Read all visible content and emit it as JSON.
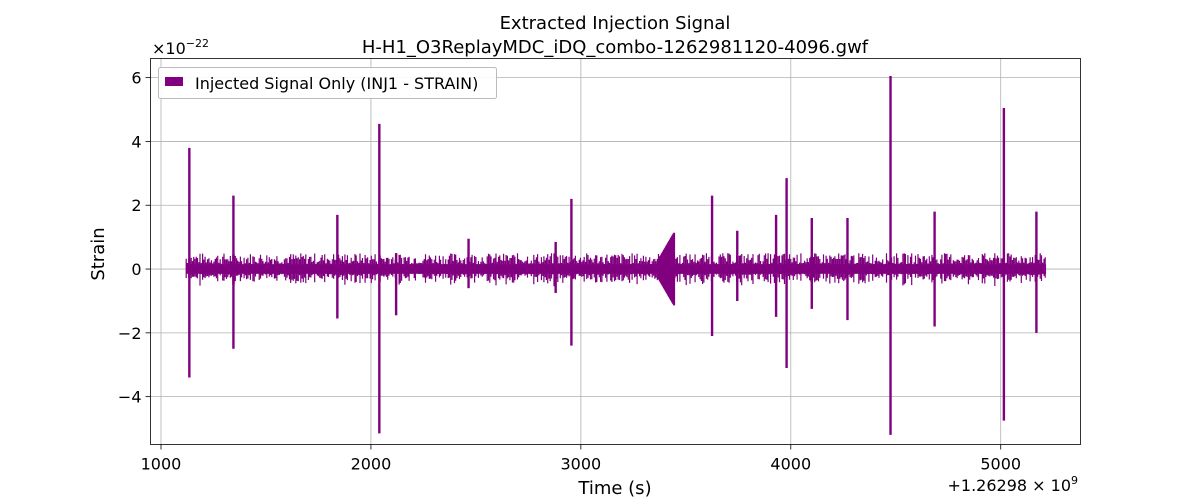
{
  "chart_data": {
    "type": "line",
    "title": "Extracted Injection Signal",
    "subtitle": "H-H1_O3ReplayMDC_iDQ_combo-1262981120-4096.gwf",
    "xlabel": "Time (s)",
    "ylabel": "Strain",
    "x_offset_label": "+1.26298 × 10",
    "x_offset_exp": "9",
    "y_scale_label": "×10",
    "y_scale_exp": "−22",
    "xlim": [
      950,
      5380
    ],
    "ylim": [
      -5.5,
      6.6
    ],
    "x_ticks": [
      1000,
      2000,
      3000,
      4000,
      5000
    ],
    "x_tick_labels": [
      "1000",
      "2000",
      "3000",
      "4000",
      "5000"
    ],
    "y_ticks": [
      -4,
      -2,
      0,
      2,
      4,
      6
    ],
    "y_tick_labels": [
      "−4",
      "−2",
      "0",
      "2",
      "4",
      "6"
    ],
    "grid": true,
    "legend_position": "top-left",
    "series": [
      {
        "name": "Injected Signal Only (INJ1 - STRAIN)",
        "color": "#800080",
        "x_range": [
          1120,
          5216
        ],
        "baseline_band": 0.15,
        "spikes": [
          {
            "x": 1135,
            "max": 3.8,
            "min": -3.4
          },
          {
            "x": 1345,
            "max": 2.3,
            "min": -2.5
          },
          {
            "x": 1840,
            "max": 1.7,
            "min": -1.55
          },
          {
            "x": 2040,
            "max": 4.55,
            "min": -5.15
          },
          {
            "x": 2120,
            "max": 0.5,
            "min": -1.45
          },
          {
            "x": 2465,
            "max": 0.95,
            "min": -0.6
          },
          {
            "x": 2880,
            "max": 0.85,
            "min": -0.75
          },
          {
            "x": 2955,
            "max": 2.2,
            "min": -2.4
          },
          {
            "x": 3625,
            "max": 2.3,
            "min": -2.1
          },
          {
            "x": 3745,
            "max": 1.2,
            "min": -1.0
          },
          {
            "x": 3930,
            "max": 1.7,
            "min": -1.5
          },
          {
            "x": 3980,
            "max": 2.85,
            "min": -3.1
          },
          {
            "x": 4100,
            "max": 1.6,
            "min": -1.25
          },
          {
            "x": 4270,
            "max": 1.6,
            "min": -1.6
          },
          {
            "x": 4475,
            "max": 6.05,
            "min": -5.2
          },
          {
            "x": 4685,
            "max": 1.8,
            "min": -1.8
          },
          {
            "x": 5015,
            "max": 5.05,
            "min": -4.75
          },
          {
            "x": 5170,
            "max": 1.8,
            "min": -2.0
          }
        ]
      }
    ]
  }
}
